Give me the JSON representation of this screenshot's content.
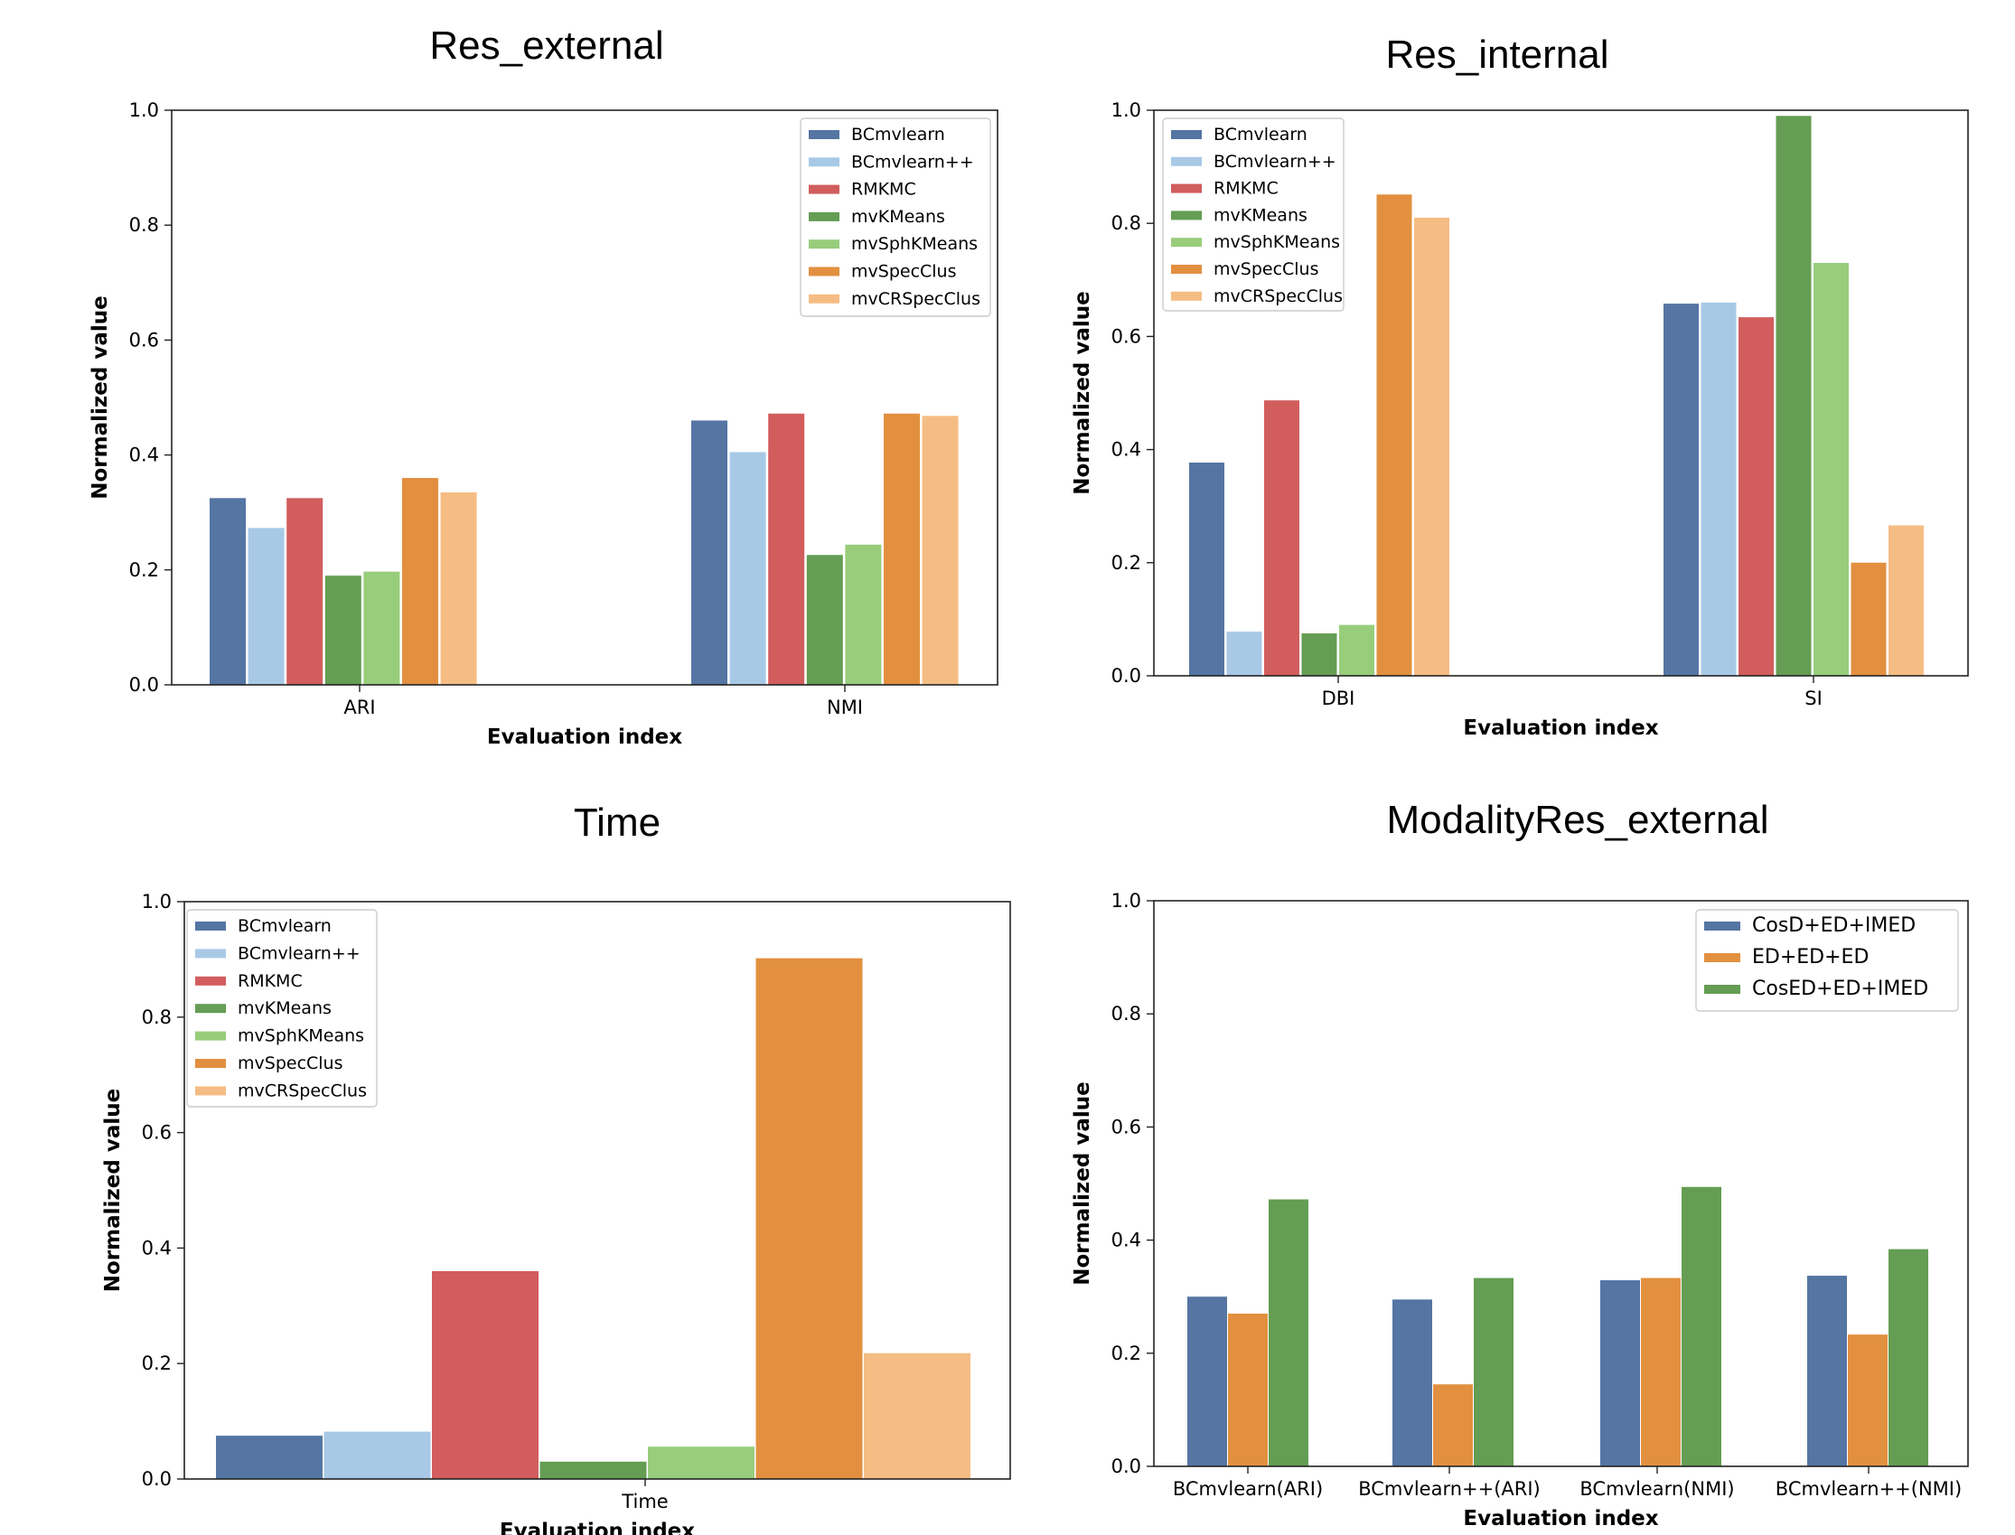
{
  "colors": {
    "BCmvlearn": "#5575a3",
    "BCmvlearn++": "#a8c9e6",
    "RMKMC": "#d15d5d",
    "mvKMeans": "#649d53",
    "mvSphKMeans": "#98cd7c",
    "mvSpecClus": "#e29040",
    "mvCRSpecClus": "#f5bd84",
    "CosD+ED+IMED": "#5575a3",
    "ED+ED+ED": "#e29040",
    "CosED+ED+IMED": "#649d53"
  },
  "chart_data": [
    {
      "type": "bar",
      "title": "Res_external",
      "xlabel": "Evaluation index",
      "ylabel": "Normalized value",
      "ylim": [
        0,
        1.0
      ],
      "yticks": [
        "0.0",
        "0.2",
        "0.4",
        "0.6",
        "0.8",
        "1.0"
      ],
      "categories": [
        "ARI",
        "NMI"
      ],
      "legend_position": "top-right",
      "series": [
        {
          "name": "BCmvlearn",
          "values": [
            0.325,
            0.46
          ]
        },
        {
          "name": "BCmvlearn++",
          "values": [
            0.273,
            0.405
          ]
        },
        {
          "name": "RMKMC",
          "values": [
            0.325,
            0.472
          ]
        },
        {
          "name": "mvKMeans",
          "values": [
            0.19,
            0.226
          ]
        },
        {
          "name": "mvSphKMeans",
          "values": [
            0.197,
            0.244
          ]
        },
        {
          "name": "mvSpecClus",
          "values": [
            0.36,
            0.472
          ]
        },
        {
          "name": "mvCRSpecClus",
          "values": [
            0.335,
            0.468
          ]
        }
      ]
    },
    {
      "type": "bar",
      "title": "Res_internal",
      "xlabel": "Evaluation index",
      "ylabel": "Normalized value",
      "ylim": [
        0,
        1.0
      ],
      "yticks": [
        "0.0",
        "0.2",
        "0.4",
        "0.6",
        "0.8",
        "1.0"
      ],
      "categories": [
        "DBI",
        "SI"
      ],
      "legend_position": "top-left",
      "series": [
        {
          "name": "BCmvlearn",
          "values": [
            0.377,
            0.658
          ]
        },
        {
          "name": "BCmvlearn++",
          "values": [
            0.078,
            0.66
          ]
        },
        {
          "name": "RMKMC",
          "values": [
            0.487,
            0.634
          ]
        },
        {
          "name": "mvKMeans",
          "values": [
            0.075,
            0.99
          ]
        },
        {
          "name": "mvSphKMeans",
          "values": [
            0.09,
            0.73
          ]
        },
        {
          "name": "mvSpecClus",
          "values": [
            0.851,
            0.2
          ]
        },
        {
          "name": "mvCRSpecClus",
          "values": [
            0.81,
            0.266
          ]
        }
      ]
    },
    {
      "type": "bar",
      "title": "Time",
      "xlabel": "Evaluation index",
      "ylabel": "Normalized value",
      "ylim": [
        0,
        1.0
      ],
      "yticks": [
        "0.0",
        "0.2",
        "0.4",
        "0.6",
        "0.8",
        "1.0"
      ],
      "categories": [
        "Time"
      ],
      "legend_position": "top-left",
      "series": [
        {
          "name": "BCmvlearn",
          "values": [
            0.075
          ]
        },
        {
          "name": "BCmvlearn++",
          "values": [
            0.082
          ]
        },
        {
          "name": "RMKMC",
          "values": [
            0.36
          ]
        },
        {
          "name": "mvKMeans",
          "values": [
            0.03
          ]
        },
        {
          "name": "mvSphKMeans",
          "values": [
            0.056
          ]
        },
        {
          "name": "mvSpecClus",
          "values": [
            0.902
          ]
        },
        {
          "name": "mvCRSpecClus",
          "values": [
            0.218
          ]
        }
      ]
    },
    {
      "type": "bar",
      "title": "ModalityRes_external",
      "xlabel": "Evaluation index",
      "ylabel": "Normalized value",
      "ylim": [
        0,
        1.0
      ],
      "yticks": [
        "0.0",
        "0.2",
        "0.4",
        "0.6",
        "0.8",
        "1.0"
      ],
      "categories": [
        "BCmvlearn(ARI)",
        "BCmvlearn++(ARI)",
        "BCmvlearn(NMI)",
        "BCmvlearn++(NMI)"
      ],
      "legend_position": "top-right",
      "series": [
        {
          "name": "CosD+ED+IMED",
          "values": [
            0.3,
            0.295,
            0.329,
            0.337
          ]
        },
        {
          "name": "ED+ED+ED",
          "values": [
            0.27,
            0.145,
            0.333,
            0.233
          ]
        },
        {
          "name": "CosED+ED+IMED",
          "values": [
            0.472,
            0.333,
            0.494,
            0.384
          ]
        }
      ]
    }
  ]
}
